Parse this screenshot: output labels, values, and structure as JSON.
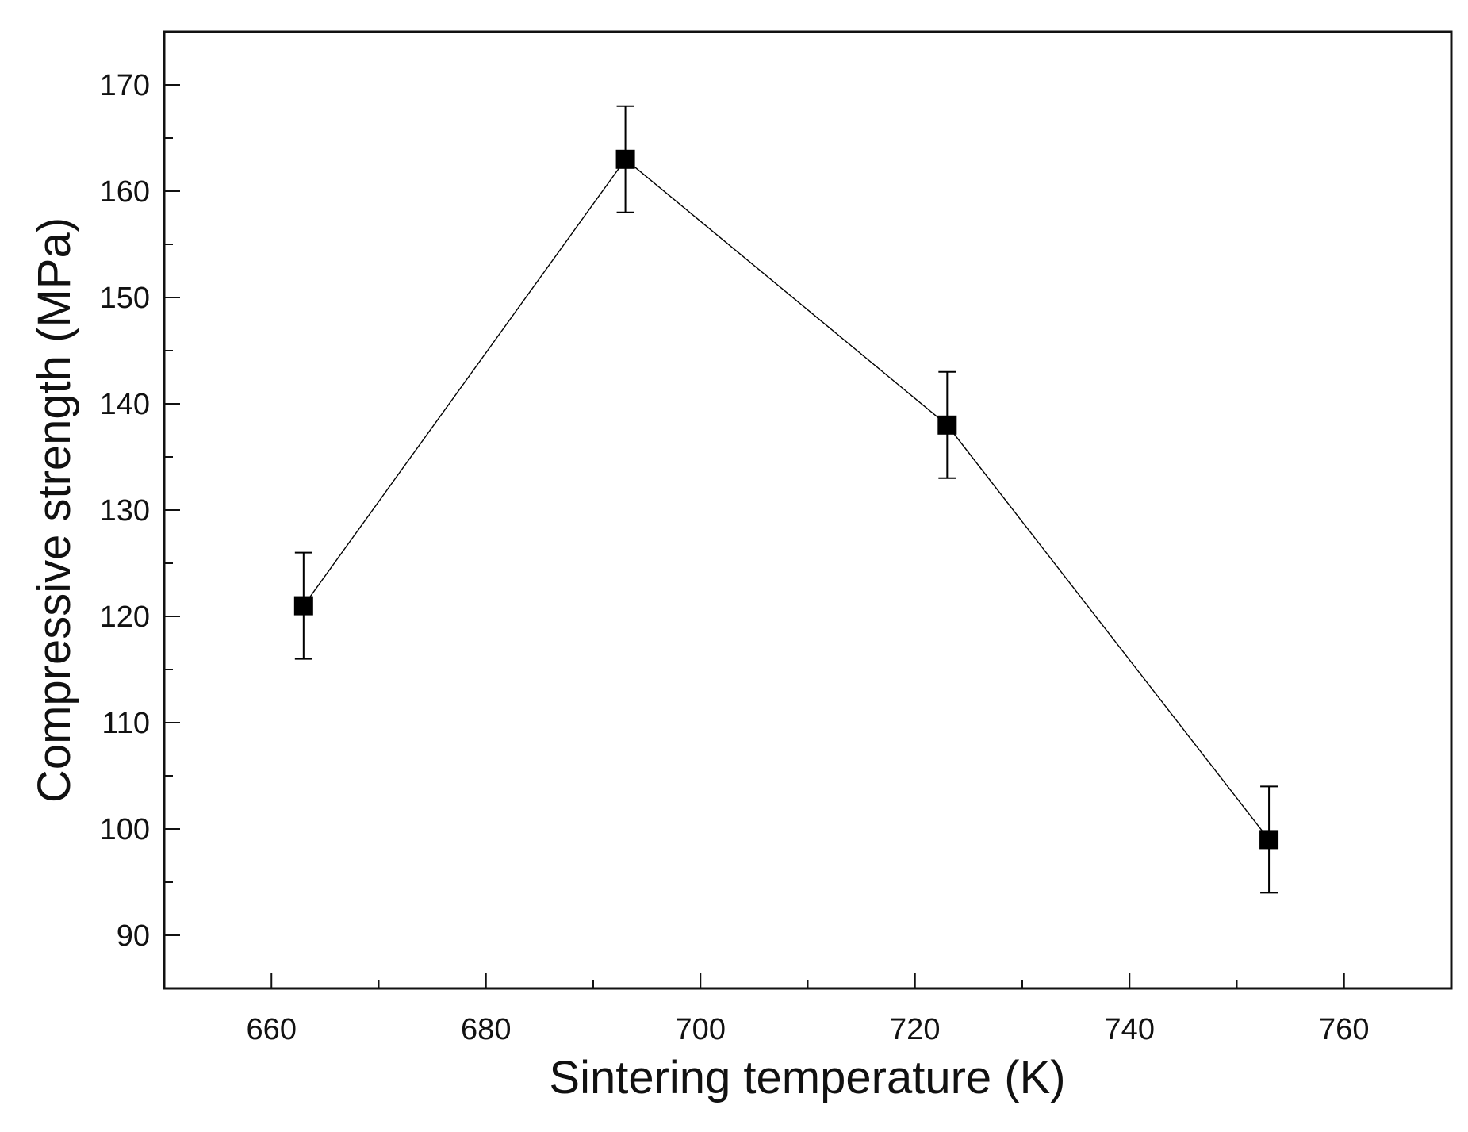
{
  "chart_data": {
    "type": "line",
    "title": "",
    "xlabel": "Sintering temperature (K)",
    "ylabel": "Compressive strength (MPa)",
    "xlim": [
      650,
      770
    ],
    "ylim": [
      85,
      175
    ],
    "x_ticks": [
      660,
      680,
      700,
      720,
      740,
      760
    ],
    "x_minor_ticks": [
      670,
      690,
      710,
      730,
      750
    ],
    "y_ticks": [
      90,
      100,
      110,
      120,
      130,
      140,
      150,
      160,
      170
    ],
    "y_minor_ticks": [
      95,
      105,
      115,
      125,
      135,
      145,
      155,
      165
    ],
    "x_tick_labels": [
      "660",
      "680",
      "700",
      "720",
      "740",
      "760"
    ],
    "y_tick_labels": [
      "90",
      "100",
      "110",
      "120",
      "130",
      "140",
      "150",
      "160",
      "170"
    ],
    "grid": false,
    "series": [
      {
        "name": "Compressive strength",
        "marker": "square",
        "color": "#000000",
        "x": [
          663,
          693,
          723,
          753
        ],
        "y": [
          121,
          163,
          138,
          99
        ],
        "error": [
          5,
          5,
          5,
          5
        ]
      }
    ]
  }
}
